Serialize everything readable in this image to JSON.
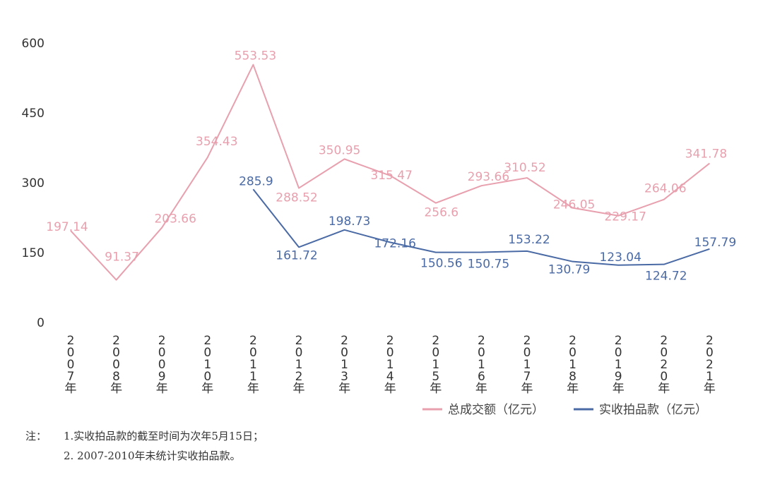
{
  "chart_data": {
    "type": "line",
    "x": [
      "2007年",
      "2008年",
      "2009年",
      "2010年",
      "2011年",
      "2012年",
      "2013年",
      "2014年",
      "2015年",
      "2016年",
      "2017年",
      "2018年",
      "2019年",
      "2020年",
      "2021年"
    ],
    "series": [
      {
        "name": "总成交额（亿元）",
        "color": "#e8a0ae",
        "values": [
          197.14,
          91.37,
          203.66,
          354.43,
          553.53,
          288.52,
          350.95,
          315.47,
          256.6,
          293.66,
          310.52,
          246.05,
          229.17,
          264.06,
          341.78
        ],
        "labels": [
          "197.14",
          "91.37",
          "203.66",
          "354.43",
          "553.53",
          "288.52",
          "350.95",
          "315.47",
          "256.6",
          "293.66",
          "310.52",
          "246.05",
          "229.17",
          "264.06",
          "341.78"
        ]
      },
      {
        "name": "实收拍品款（亿元）",
        "color": "#4a6aa5",
        "values": [
          null,
          null,
          null,
          null,
          285.9,
          161.72,
          198.73,
          172.16,
          150.56,
          150.75,
          153.22,
          130.79,
          123.04,
          124.72,
          157.79
        ],
        "labels": [
          null,
          null,
          null,
          null,
          "285.9",
          "161.72",
          "198.73",
          "172.16",
          "150.56",
          "150.75",
          "153.22",
          "130.79",
          "123.04",
          "124.72",
          "157.79"
        ]
      }
    ],
    "yticks": [
      0,
      150,
      300,
      450,
      600
    ],
    "ylim": [
      0,
      600
    ],
    "grid": false,
    "legend": "bottom-right",
    "title": "",
    "xlabel": "",
    "ylabel": ""
  },
  "notes": {
    "label": "注：",
    "lines": [
      "1.实收拍品款的截至时间为次年5月15日；",
      "2. 2007-2010年未统计实收拍品款。"
    ]
  }
}
